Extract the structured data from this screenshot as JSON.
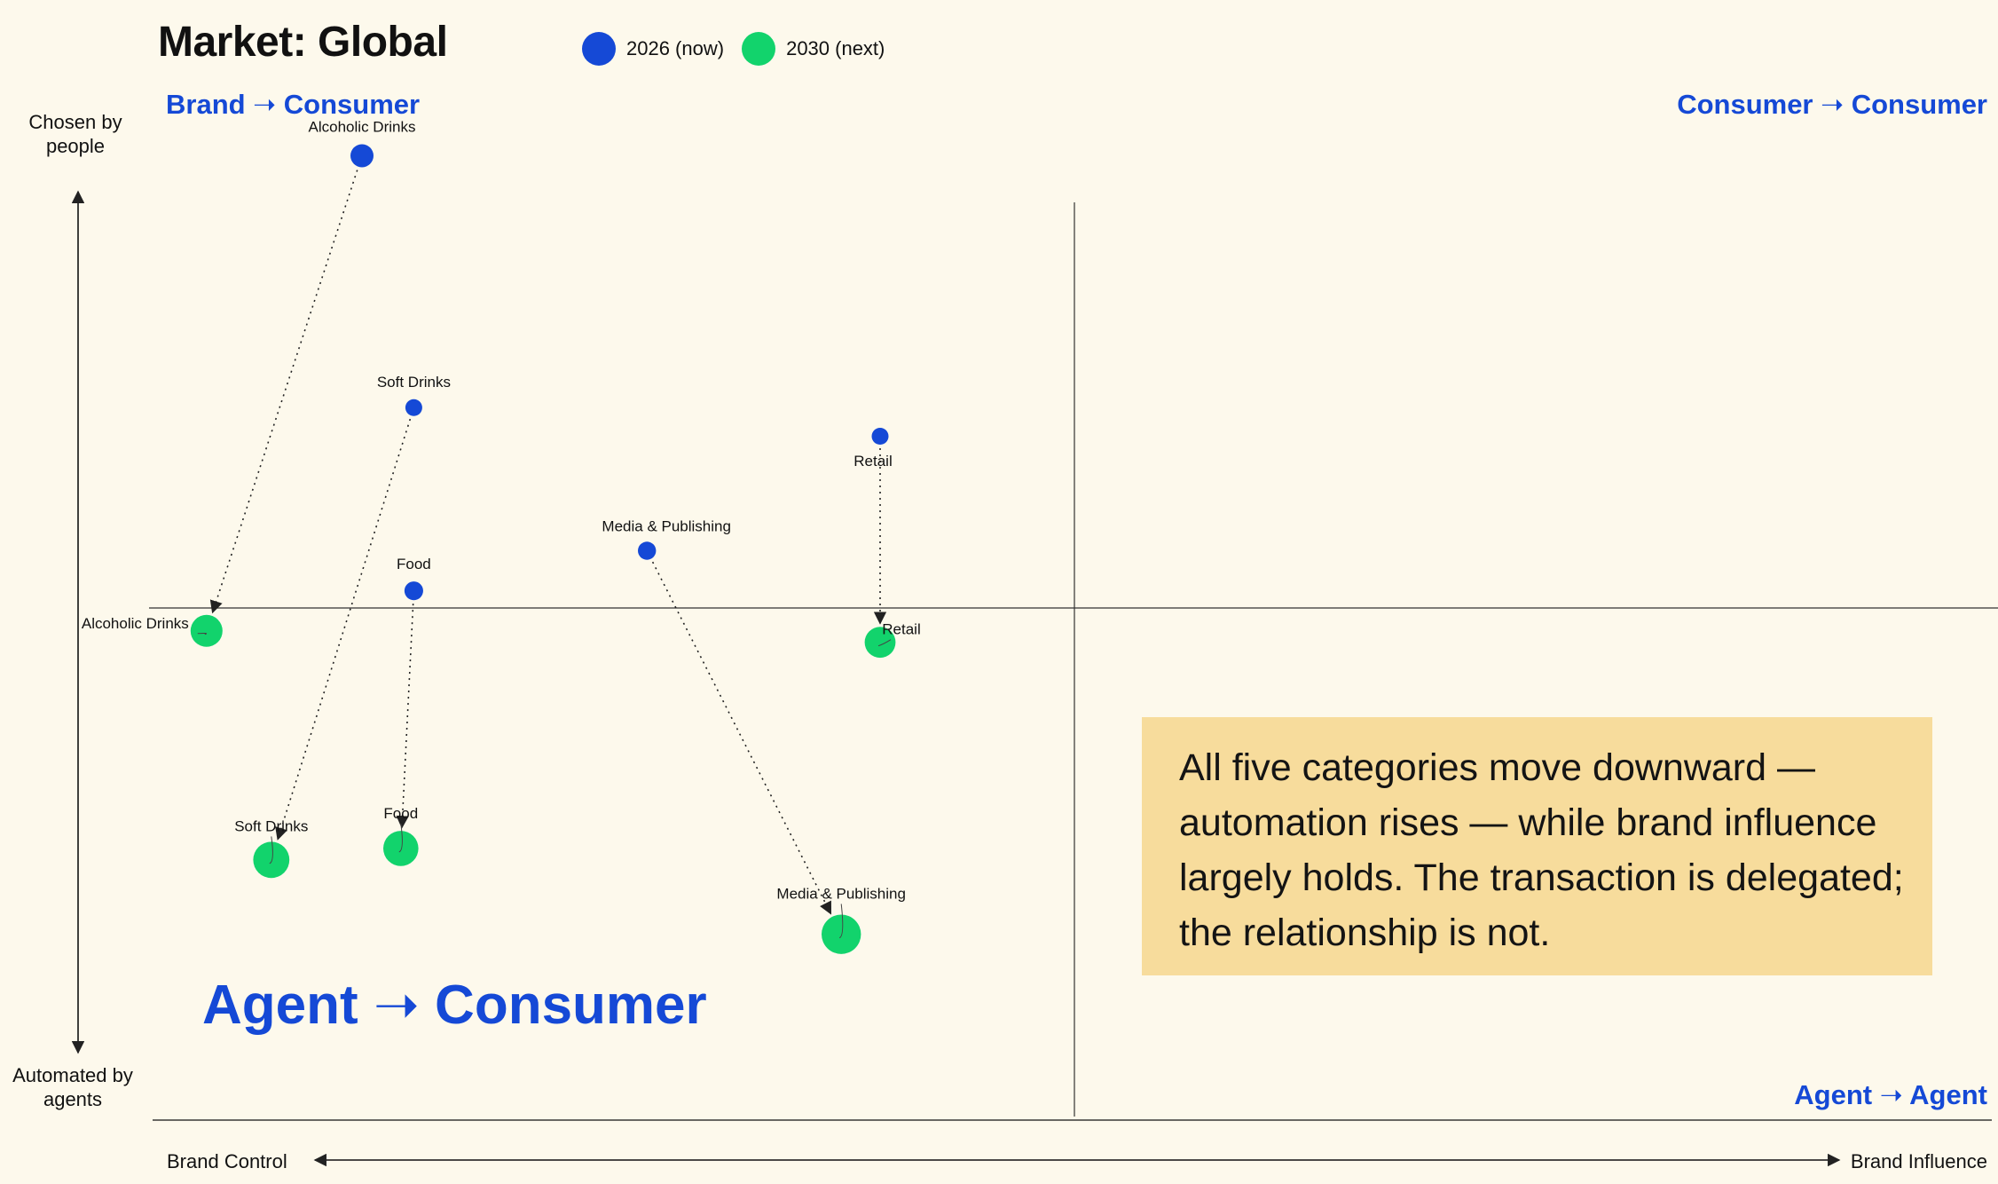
{
  "title": "Market: Global",
  "legend": [
    {
      "label": "2026 (now)",
      "color": "#1549d6"
    },
    {
      "label": "2030 (next)",
      "color": "#12d36c"
    }
  ],
  "quadrants": {
    "top_left": "Brand ➝ Consumer",
    "top_right": "Consumer ➝ Consumer",
    "bottom_left": "Agent ➝ Consumer",
    "bottom_right": "Agent ➝ Agent"
  },
  "axes": {
    "y_top": "Chosen by people",
    "y_bottom": "Automated by agents",
    "x_left": "Brand Control",
    "x_right": "Brand Influence"
  },
  "callout": "All five categories move downward — automation rises — while brand influence largely holds. The transaction is delegated; the relationship is not.",
  "colors": {
    "background": "#fdf9ec",
    "accent": "#1549d6",
    "now": "#1549d6",
    "next": "#12d36c",
    "callout_bg": "#f7dc9c"
  },
  "chart_data": {
    "type": "scatter",
    "x_range": [
      -1,
      1
    ],
    "y_range": [
      -1,
      1
    ],
    "grid": false,
    "legend_position": "top",
    "series": [
      {
        "name": "2026 (now)",
        "color": "#1549d6"
      },
      {
        "name": "2030 (next)",
        "color": "#12d36c"
      }
    ],
    "categories": [
      {
        "name": "Alcoholic Drinks",
        "now": {
          "x": -0.55,
          "y": 0.79,
          "size": 1.0
        },
        "next": {
          "x": -0.67,
          "y": -0.04,
          "size": 1.0
        }
      },
      {
        "name": "Soft Drinks",
        "now": {
          "x": -0.51,
          "y": 0.35,
          "size": 0.5
        },
        "next": {
          "x": -0.62,
          "y": -0.44,
          "size": 1.2
        }
      },
      {
        "name": "Food",
        "now": {
          "x": -0.51,
          "y": 0.03,
          "size": 0.65
        },
        "next": {
          "x": -0.52,
          "y": -0.42,
          "size": 1.15
        }
      },
      {
        "name": "Media & Publishing",
        "now": {
          "x": -0.33,
          "y": 0.1,
          "size": 0.6
        },
        "next": {
          "x": -0.18,
          "y": -0.57,
          "size": 1.35
        }
      },
      {
        "name": "Retail",
        "now": {
          "x": -0.15,
          "y": 0.3,
          "size": 0.5
        },
        "next": {
          "x": -0.15,
          "y": -0.06,
          "size": 0.95
        }
      }
    ]
  }
}
